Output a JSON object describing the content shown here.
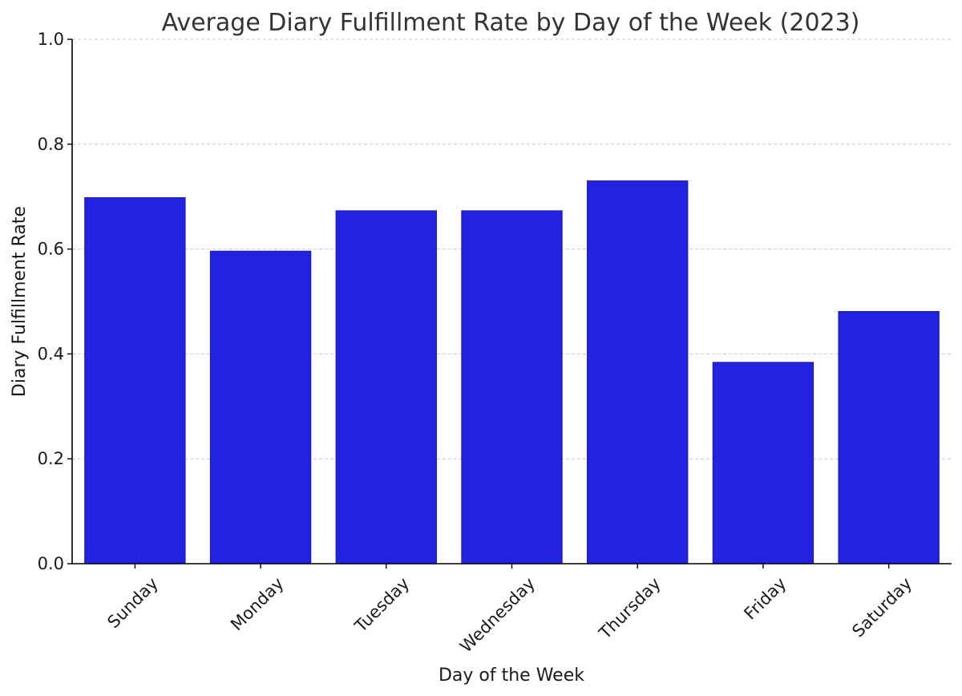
{
  "chart_data": {
    "type": "bar",
    "title": "Average Diary Fulfillment Rate by Day of the Week (2023)",
    "xlabel": "Day of the Week",
    "ylabel": "Diary Fulfillment Rate",
    "categories": [
      "Sunday",
      "Monday",
      "Tuesday",
      "Wednesday",
      "Thursday",
      "Friday",
      "Saturday"
    ],
    "values": [
      0.698,
      0.596,
      0.673,
      0.673,
      0.73,
      0.384,
      0.481
    ],
    "ylim": [
      0,
      1.0
    ],
    "yticks": [
      "0.0",
      "0.2",
      "0.4",
      "0.6",
      "0.8",
      "1.0"
    ],
    "grid": "horizontal dashed",
    "bar_color": "#2222e0",
    "bar_edge_color": "#1a1ab0"
  }
}
